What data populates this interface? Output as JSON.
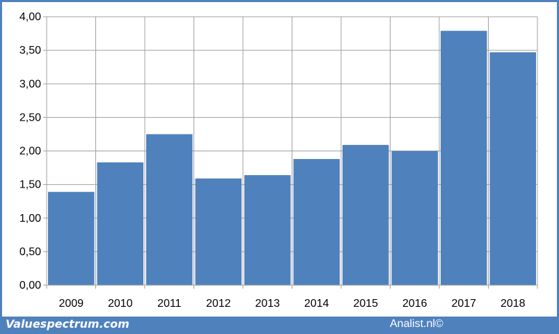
{
  "chart_data": {
    "type": "bar",
    "categories": [
      "2009",
      "2010",
      "2011",
      "2012",
      "2013",
      "2014",
      "2015",
      "2016",
      "2017",
      "2018"
    ],
    "values": [
      1.39,
      1.83,
      2.25,
      1.59,
      1.64,
      1.88,
      2.09,
      2.0,
      3.79,
      3.47
    ],
    "title": "",
    "xlabel": "",
    "ylabel": "",
    "ylim": [
      0,
      4
    ],
    "yticks": [
      "0,00",
      "0,50",
      "1,00",
      "1,50",
      "2,00",
      "2,50",
      "3,00",
      "3,50",
      "4,00"
    ],
    "grid": true,
    "legend": "none",
    "bar_color": "#4f81bd"
  },
  "footer": {
    "left": "Valuespectrum.com",
    "right": "Analist.nl©"
  },
  "colors": {
    "frame": "#4f81bd",
    "grid": "#a0a0a0"
  }
}
